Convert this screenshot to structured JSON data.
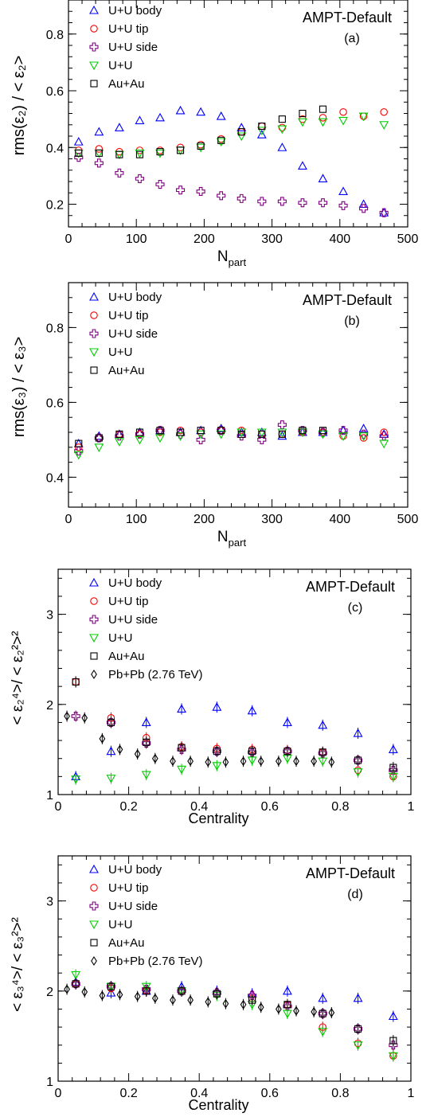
{
  "colors": {
    "body": "#0000ff",
    "tip": "#ff0000",
    "side": "#800080",
    "uu": "#00cc00",
    "auau": "#000000",
    "pbpb": "#000000"
  },
  "chart_data": [
    {
      "panel": "(a)",
      "type": "scatter",
      "model_label": "AMPT-Default",
      "xlabel": "N",
      "xlabel_sub": "part",
      "ylabel": "rms(ε₂) / < ε₂>",
      "xlim": [
        0,
        500
      ],
      "ylim": [
        0.12,
        0.92
      ],
      "xticks": [
        0,
        100,
        200,
        300,
        400,
        500
      ],
      "yticks": [
        0.2,
        0.4,
        0.6,
        0.8
      ],
      "tick_labels_x": [
        "0",
        "100",
        "200",
        "300",
        "400",
        "500"
      ],
      "tick_labels_y": [
        "0.2",
        "0.4",
        "0.6",
        "0.8"
      ],
      "legend": "top-left",
      "grid": false,
      "series": [
        {
          "name": "U+U body",
          "marker": "triangle-up",
          "color_key": "body",
          "x": [
            15,
            45,
            75,
            105,
            135,
            165,
            195,
            225,
            255,
            285,
            315,
            345,
            375,
            405,
            435,
            465
          ],
          "y": [
            0.42,
            0.455,
            0.47,
            0.495,
            0.505,
            0.53,
            0.525,
            0.51,
            0.47,
            0.445,
            0.4,
            0.335,
            0.29,
            0.245,
            0.2,
            0.17
          ]
        },
        {
          "name": "U+U tip",
          "marker": "circle",
          "color_key": "tip",
          "x": [
            15,
            45,
            75,
            105,
            135,
            165,
            195,
            225,
            255,
            285,
            315,
            345,
            375,
            405,
            435,
            465
          ],
          "y": [
            0.39,
            0.395,
            0.385,
            0.39,
            0.39,
            0.4,
            0.41,
            0.43,
            0.455,
            0.475,
            0.47,
            0.5,
            0.505,
            0.525,
            0.51,
            0.525
          ]
        },
        {
          "name": "U+U side",
          "marker": "cross",
          "color_key": "side",
          "x": [
            15,
            45,
            75,
            105,
            135,
            165,
            195,
            225,
            255,
            285,
            315,
            345,
            375,
            405,
            435,
            465
          ],
          "y": [
            0.365,
            0.345,
            0.31,
            0.29,
            0.27,
            0.25,
            0.245,
            0.23,
            0.22,
            0.21,
            0.21,
            0.205,
            0.205,
            0.195,
            0.185,
            0.17
          ]
        },
        {
          "name": "U+U",
          "marker": "triangle-down",
          "color_key": "uu",
          "x": [
            15,
            45,
            75,
            105,
            135,
            165,
            195,
            225,
            255,
            285,
            315,
            345,
            375,
            405,
            435,
            465
          ],
          "y": [
            0.38,
            0.38,
            0.375,
            0.38,
            0.38,
            0.39,
            0.4,
            0.42,
            0.44,
            0.46,
            0.465,
            0.49,
            0.49,
            0.495,
            0.51,
            0.48
          ]
        },
        {
          "name": "Au+Au",
          "marker": "square",
          "color_key": "auau",
          "x": [
            15,
            45,
            75,
            105,
            135,
            165,
            195,
            225,
            255,
            285,
            315,
            345,
            375
          ],
          "y": [
            0.38,
            0.38,
            0.375,
            0.375,
            0.385,
            0.39,
            0.405,
            0.425,
            0.455,
            0.475,
            0.5,
            0.52,
            0.535
          ]
        }
      ]
    },
    {
      "panel": "(b)",
      "type": "scatter",
      "model_label": "AMPT-Default",
      "xlabel": "N",
      "xlabel_sub": "part",
      "ylabel": "rms(ε₃) / < ε₃>",
      "xlim": [
        0,
        500
      ],
      "ylim": [
        0.32,
        0.92
      ],
      "xticks": [
        0,
        100,
        200,
        300,
        400,
        500
      ],
      "yticks": [
        0.4,
        0.6,
        0.8
      ],
      "tick_labels_x": [
        "0",
        "100",
        "200",
        "300",
        "400",
        "500"
      ],
      "tick_labels_y": [
        "0.4",
        "0.6",
        "0.8"
      ],
      "legend": "top-left",
      "grid": false,
      "series": [
        {
          "name": "U+U body",
          "marker": "triangle-up",
          "color_key": "body",
          "x": [
            15,
            45,
            75,
            105,
            135,
            165,
            195,
            225,
            255,
            285,
            315,
            345,
            375,
            405,
            435,
            465
          ],
          "y": [
            0.49,
            0.51,
            0.515,
            0.52,
            0.525,
            0.52,
            0.525,
            0.53,
            0.52,
            0.52,
            0.51,
            0.52,
            0.52,
            0.525,
            0.53,
            0.515
          ]
        },
        {
          "name": "U+U tip",
          "marker": "circle",
          "color_key": "tip",
          "x": [
            15,
            45,
            75,
            105,
            135,
            165,
            195,
            225,
            255,
            285,
            315,
            345,
            375,
            405,
            435,
            465
          ],
          "y": [
            0.48,
            0.505,
            0.515,
            0.515,
            0.52,
            0.525,
            0.52,
            0.525,
            0.525,
            0.515,
            0.515,
            0.52,
            0.52,
            0.51,
            0.505,
            0.52
          ]
        },
        {
          "name": "U+U side",
          "marker": "cross",
          "color_key": "side",
          "x": [
            15,
            45,
            75,
            105,
            135,
            165,
            195,
            225,
            255,
            285,
            315,
            345,
            375,
            405,
            435,
            465
          ],
          "y": [
            0.47,
            0.505,
            0.51,
            0.515,
            0.525,
            0.515,
            0.5,
            0.525,
            0.51,
            0.5,
            0.54,
            0.525,
            0.52,
            0.525,
            0.515,
            0.51
          ]
        },
        {
          "name": "U+U",
          "marker": "triangle-down",
          "color_key": "uu",
          "x": [
            15,
            45,
            75,
            105,
            135,
            165,
            195,
            225,
            255,
            285,
            315,
            345,
            375,
            405,
            435,
            465
          ],
          "y": [
            0.46,
            0.48,
            0.495,
            0.5,
            0.505,
            0.51,
            0.515,
            0.515,
            0.52,
            0.52,
            0.52,
            0.52,
            0.515,
            0.51,
            0.51,
            0.49
          ]
        },
        {
          "name": "Au+Au",
          "marker": "square",
          "color_key": "auau",
          "x": [
            15,
            45,
            75,
            105,
            135,
            165,
            195,
            225,
            255,
            285,
            315,
            345,
            375
          ],
          "y": [
            0.49,
            0.505,
            0.515,
            0.52,
            0.525,
            0.52,
            0.525,
            0.525,
            0.515,
            0.515,
            0.515,
            0.525,
            0.525
          ]
        }
      ]
    },
    {
      "panel": "(c)",
      "type": "scatter",
      "model_label": "AMPT-Default",
      "xlabel": "Centrality",
      "ylabel": "< ε₂⁴>/ < ε₂²>²",
      "xlim": [
        0,
        1
      ],
      "ylim": [
        1,
        3.5
      ],
      "xticks": [
        0,
        0.2,
        0.4,
        0.6,
        0.8,
        1
      ],
      "yticks": [
        1,
        2,
        3
      ],
      "tick_labels_x": [
        "0",
        "0.2",
        "0.4",
        "0.6",
        "0.8",
        "1"
      ],
      "tick_labels_y": [
        "1",
        "2",
        "3"
      ],
      "legend": "top-left",
      "grid": false,
      "series": [
        {
          "name": "U+U body",
          "marker": "triangle-up",
          "color_key": "body",
          "x": [
            0.05,
            0.15,
            0.25,
            0.35,
            0.45,
            0.55,
            0.65,
            0.75,
            0.85,
            0.95
          ],
          "y": [
            1.2,
            1.48,
            1.8,
            1.95,
            1.97,
            1.93,
            1.8,
            1.77,
            1.68,
            1.5
          ]
        },
        {
          "name": "U+U tip",
          "marker": "circle",
          "color_key": "tip",
          "x": [
            0.05,
            0.15,
            0.25,
            0.35,
            0.45,
            0.55,
            0.65,
            0.75,
            0.85,
            0.95
          ],
          "y": [
            2.25,
            1.85,
            1.63,
            1.53,
            1.51,
            1.5,
            1.49,
            1.47,
            1.27,
            1.2
          ]
        },
        {
          "name": "U+U side",
          "marker": "cross",
          "color_key": "side",
          "x": [
            0.05,
            0.15,
            0.25,
            0.35,
            0.45,
            0.55,
            0.65,
            0.75,
            0.85,
            0.95
          ],
          "y": [
            1.87,
            1.8,
            1.57,
            1.5,
            1.48,
            1.47,
            1.48,
            1.46,
            1.38,
            1.27
          ]
        },
        {
          "name": "U+U",
          "marker": "triangle-down",
          "color_key": "uu",
          "x": [
            0.05,
            0.15,
            0.25,
            0.35,
            0.45,
            0.55,
            0.65,
            0.75,
            0.85,
            0.95
          ],
          "y": [
            1.17,
            1.18,
            1.22,
            1.28,
            1.32,
            1.38,
            1.4,
            1.37,
            1.25,
            1.2
          ]
        },
        {
          "name": "Au+Au",
          "marker": "square",
          "color_key": "auau",
          "x": [
            0.05,
            0.15,
            0.25,
            0.35,
            0.45,
            0.55,
            0.65,
            0.75,
            0.85,
            0.95
          ],
          "y": [
            2.25,
            1.8,
            1.58,
            1.52,
            1.48,
            1.48,
            1.48,
            1.47,
            1.38,
            1.3
          ]
        },
        {
          "name": "Pb+Pb (2.76 TeV)",
          "marker": "diamond",
          "color_key": "pbpb",
          "x": [
            0.025,
            0.075,
            0.125,
            0.175,
            0.225,
            0.275,
            0.325,
            0.375,
            0.425,
            0.475,
            0.525,
            0.575,
            0.625,
            0.675,
            0.725,
            0.775
          ],
          "y": [
            1.87,
            1.85,
            1.62,
            1.5,
            1.45,
            1.4,
            1.37,
            1.37,
            1.36,
            1.36,
            1.37,
            1.37,
            1.37,
            1.37,
            1.37,
            1.36
          ]
        }
      ]
    },
    {
      "panel": "(d)",
      "type": "scatter",
      "model_label": "AMPT-Default",
      "xlabel": "Centrality",
      "ylabel": "< ε₃⁴>/ < ε₃²>²",
      "xlim": [
        0,
        1
      ],
      "ylim": [
        1,
        3.5
      ],
      "xticks": [
        0,
        0.2,
        0.4,
        0.6,
        0.8,
        1
      ],
      "yticks": [
        1,
        2,
        3
      ],
      "tick_labels_x": [
        "0",
        "0.2",
        "0.4",
        "0.6",
        "0.8",
        "1"
      ],
      "tick_labels_y": [
        "1",
        "2",
        "3"
      ],
      "legend": "top-left",
      "grid": false,
      "series": [
        {
          "name": "U+U body",
          "marker": "triangle-up",
          "color_key": "body",
          "x": [
            0.05,
            0.15,
            0.25,
            0.35,
            0.45,
            0.55,
            0.65,
            0.75,
            0.85,
            0.95
          ],
          "y": [
            2.1,
            1.98,
            2.0,
            2.05,
            2.0,
            1.97,
            2.0,
            1.92,
            1.92,
            1.72
          ]
        },
        {
          "name": "U+U tip",
          "marker": "circle",
          "color_key": "tip",
          "x": [
            0.05,
            0.15,
            0.25,
            0.35,
            0.45,
            0.55,
            0.65,
            0.75,
            0.85,
            0.95
          ],
          "y": [
            2.08,
            2.03,
            2.0,
            2.0,
            1.97,
            1.92,
            1.85,
            1.6,
            1.42,
            1.28
          ]
        },
        {
          "name": "U+U side",
          "marker": "cross",
          "color_key": "side",
          "x": [
            0.05,
            0.15,
            0.25,
            0.35,
            0.45,
            0.55,
            0.65,
            0.75,
            0.85,
            0.95
          ],
          "y": [
            2.08,
            2.05,
            2.02,
            2.0,
            1.98,
            1.95,
            1.83,
            1.75,
            1.58,
            1.4
          ]
        },
        {
          "name": "U+U",
          "marker": "triangle-down",
          "color_key": "uu",
          "x": [
            0.05,
            0.15,
            0.25,
            0.35,
            0.45,
            0.55,
            0.65,
            0.75,
            0.85,
            0.95
          ],
          "y": [
            2.18,
            2.05,
            2.05,
            2.0,
            1.95,
            1.85,
            1.75,
            1.55,
            1.4,
            1.28
          ]
        },
        {
          "name": "Au+Au",
          "marker": "square",
          "color_key": "auau",
          "x": [
            0.05,
            0.15,
            0.25,
            0.35,
            0.45,
            0.55,
            0.65,
            0.75,
            0.85,
            0.95
          ],
          "y": [
            2.08,
            2.05,
            2.0,
            2.0,
            1.97,
            1.9,
            1.85,
            1.75,
            1.58,
            1.45
          ]
        },
        {
          "name": "Pb+Pb (2.76 TeV)",
          "marker": "diamond",
          "color_key": "pbpb",
          "x": [
            0.025,
            0.075,
            0.125,
            0.175,
            0.225,
            0.275,
            0.325,
            0.375,
            0.425,
            0.475,
            0.525,
            0.575,
            0.625,
            0.675,
            0.725,
            0.775
          ],
          "y": [
            2.02,
            1.99,
            1.95,
            1.96,
            1.94,
            1.92,
            1.9,
            1.9,
            1.88,
            1.86,
            1.85,
            1.82,
            1.8,
            1.78,
            1.77,
            1.76
          ]
        }
      ]
    }
  ]
}
